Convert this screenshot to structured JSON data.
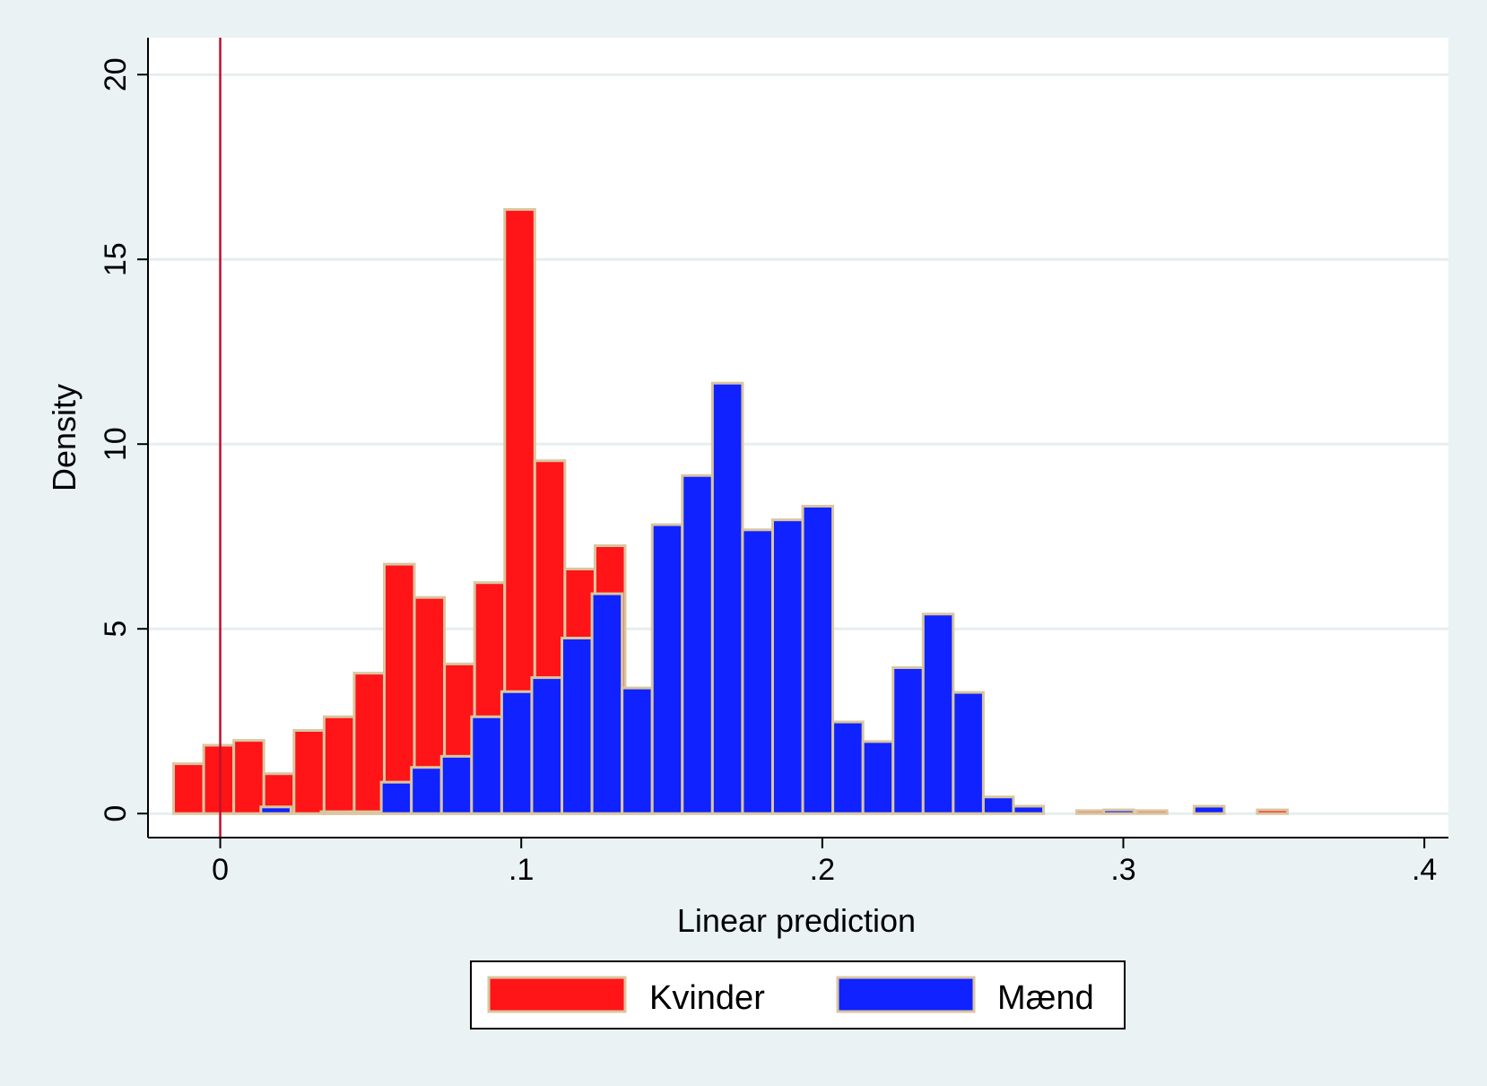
{
  "chart_data": {
    "type": "bar",
    "title": "",
    "xlabel": "Linear prediction",
    "ylabel": "Density",
    "xlim": [
      -0.024,
      0.408
    ],
    "ylim": [
      -0.65,
      21
    ],
    "grid": true,
    "legend_position": "bottom",
    "x_ticks": [
      {
        "value": 0,
        "label": "0"
      },
      {
        "value": 0.1,
        "label": ".1"
      },
      {
        "value": 0.2,
        "label": ".2"
      },
      {
        "value": 0.3,
        "label": ".3"
      },
      {
        "value": 0.4,
        "label": ".4"
      }
    ],
    "y_ticks": [
      {
        "value": 0,
        "label": "0"
      },
      {
        "value": 5,
        "label": "5"
      },
      {
        "value": 10,
        "label": "10"
      },
      {
        "value": 15,
        "label": "15"
      },
      {
        "value": 20,
        "label": "20"
      }
    ],
    "reference_line": {
      "x": 0,
      "color": "#c0102c"
    },
    "bin_width": 0.01,
    "series": [
      {
        "name": "Kvinder",
        "color": "#ff1417",
        "bins": [
          {
            "start": -0.0155,
            "value": 1.35
          },
          {
            "start": -0.0055,
            "value": 1.85
          },
          {
            "start": 0.0045,
            "value": 1.98
          },
          {
            "start": 0.0145,
            "value": 1.08
          },
          {
            "start": 0.0245,
            "value": 2.25
          },
          {
            "start": 0.0345,
            "value": 2.62
          },
          {
            "start": 0.0445,
            "value": 3.8
          },
          {
            "start": 0.0545,
            "value": 6.75
          },
          {
            "start": 0.0645,
            "value": 5.85
          },
          {
            "start": 0.0745,
            "value": 4.05
          },
          {
            "start": 0.0845,
            "value": 6.25
          },
          {
            "start": 0.0945,
            "value": 16.35
          },
          {
            "start": 0.1045,
            "value": 9.55
          },
          {
            "start": 0.1145,
            "value": 6.62
          },
          {
            "start": 0.1245,
            "value": 7.25
          },
          {
            "start": 0.1345,
            "value": 2.0
          },
          {
            "start": 0.2845,
            "value": 0.08
          },
          {
            "start": 0.3045,
            "value": 0.08
          },
          {
            "start": 0.3445,
            "value": 0.1
          }
        ]
      },
      {
        "name": "Mænd",
        "color": "#0f22ff",
        "bins": [
          {
            "start": 0.0135,
            "value": 0.18
          },
          {
            "start": 0.0335,
            "value": 0.05
          },
          {
            "start": 0.0435,
            "value": 0.05
          },
          {
            "start": 0.0535,
            "value": 0.85
          },
          {
            "start": 0.0635,
            "value": 1.25
          },
          {
            "start": 0.0735,
            "value": 1.55
          },
          {
            "start": 0.0835,
            "value": 2.62
          },
          {
            "start": 0.0935,
            "value": 3.3
          },
          {
            "start": 0.1035,
            "value": 3.68
          },
          {
            "start": 0.1135,
            "value": 4.75
          },
          {
            "start": 0.1235,
            "value": 5.95
          },
          {
            "start": 0.1335,
            "value": 3.4
          },
          {
            "start": 0.1435,
            "value": 7.82
          },
          {
            "start": 0.1535,
            "value": 9.15
          },
          {
            "start": 0.1635,
            "value": 11.65
          },
          {
            "start": 0.1735,
            "value": 7.68
          },
          {
            "start": 0.1835,
            "value": 7.95
          },
          {
            "start": 0.1935,
            "value": 8.32
          },
          {
            "start": 0.2035,
            "value": 2.48
          },
          {
            "start": 0.2135,
            "value": 1.95
          },
          {
            "start": 0.2235,
            "value": 3.95
          },
          {
            "start": 0.2335,
            "value": 5.4
          },
          {
            "start": 0.2435,
            "value": 3.28
          },
          {
            "start": 0.2535,
            "value": 0.45
          },
          {
            "start": 0.2635,
            "value": 0.2
          },
          {
            "start": 0.2935,
            "value": 0.1
          },
          {
            "start": 0.3235,
            "value": 0.2
          }
        ]
      }
    ]
  }
}
